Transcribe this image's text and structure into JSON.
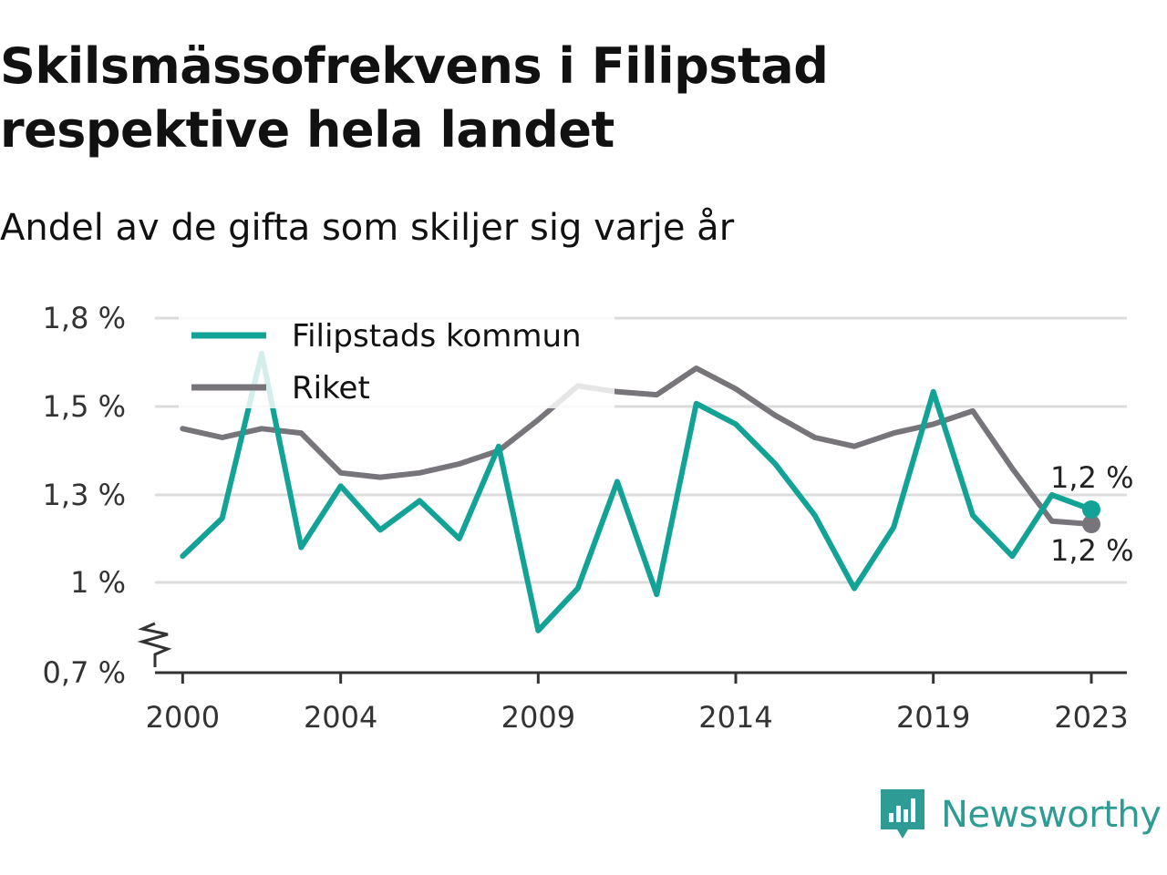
{
  "title": "Skilsmässofrekvens i Filipstad respektive hela landet",
  "subtitle": "Andel av de gifta som skiljer sig varje år",
  "brand": {
    "name": "Newsworthy",
    "icon": "newsworthy-logo-icon",
    "color": "#2e9c94"
  },
  "chart_data": {
    "type": "line",
    "x": [
      2000,
      2001,
      2002,
      2003,
      2004,
      2005,
      2006,
      2007,
      2008,
      2009,
      2010,
      2011,
      2012,
      2013,
      2014,
      2015,
      2016,
      2017,
      2018,
      2019,
      2020,
      2021,
      2022,
      2023
    ],
    "x_ticks": [
      {
        "value": 2000,
        "label": "2000"
      },
      {
        "value": 2004,
        "label": "2004"
      },
      {
        "value": 2009,
        "label": "2009"
      },
      {
        "value": 2014,
        "label": "2014"
      },
      {
        "value": 2019,
        "label": "2019"
      },
      {
        "value": 2023,
        "label": "2023"
      }
    ],
    "y_ticks": [
      {
        "value": 0.7,
        "label": "0,7 %"
      },
      {
        "value": 1.0,
        "label": "1 %"
      },
      {
        "value": 1.3,
        "label": "1,3 %"
      },
      {
        "value": 1.5,
        "label": "1,5 %"
      },
      {
        "value": 1.8,
        "label": "1,8 %"
      }
    ],
    "ylim": [
      0.7,
      1.8
    ],
    "y_axis_break": true,
    "grid": true,
    "legend_position": "top-left",
    "series": [
      {
        "name": "Filipstads kommun",
        "color": "#12a396",
        "values": [
          1.09,
          1.22,
          1.68,
          1.12,
          1.32,
          1.18,
          1.28,
          1.15,
          1.41,
          0.84,
          0.98,
          1.33,
          0.96,
          1.51,
          1.46,
          1.37,
          1.23,
          0.98,
          1.19,
          1.55,
          1.23,
          1.09,
          1.3,
          1.25
        ],
        "end_label": "1,2 %"
      },
      {
        "name": "Riket",
        "color": "#77757a",
        "values": [
          1.45,
          1.43,
          1.45,
          1.44,
          1.35,
          1.34,
          1.35,
          1.37,
          1.4,
          1.47,
          1.57,
          1.55,
          1.54,
          1.63,
          1.56,
          1.48,
          1.43,
          1.41,
          1.44,
          1.46,
          1.49,
          1.36,
          1.21,
          1.2
        ],
        "end_label": "1,2 %"
      }
    ]
  }
}
